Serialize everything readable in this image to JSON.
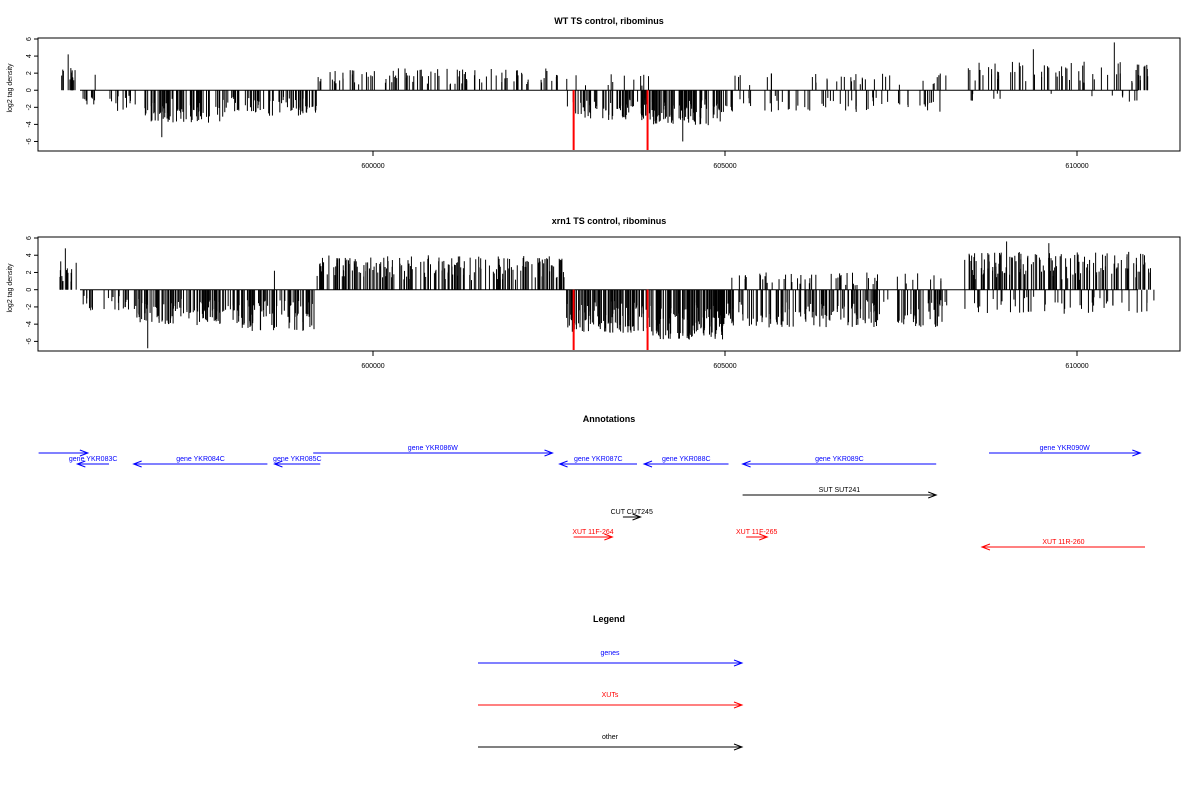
{
  "chart_data": [
    {
      "type": "bar",
      "title": "WT TS control, ribominus",
      "ylabel": "log2 tag density",
      "ylim": [
        -7,
        6
      ],
      "yticks": [
        -6,
        -4,
        -2,
        0,
        2,
        4,
        6
      ],
      "xlim": [
        595250,
        611500
      ],
      "xticks": [
        600000,
        605000,
        610000
      ],
      "segments": [
        {
          "start": 595550,
          "end": 595800,
          "sign": 1,
          "amp": 2.6,
          "density": 12
        },
        {
          "start": 595850,
          "end": 596050,
          "sign": -1,
          "amp": 1.8,
          "density": 10
        },
        {
          "start": 596000,
          "end": 596100,
          "sign": 1,
          "amp": 2.0,
          "density": 1
        },
        {
          "start": 596100,
          "end": 596750,
          "sign": -1,
          "amp": 2.5,
          "density": 14
        },
        {
          "start": 596750,
          "end": 597900,
          "sign": -1,
          "amp": 3.8,
          "density": 75
        },
        {
          "start": 597900,
          "end": 598500,
          "sign": -1,
          "amp": 2.6,
          "density": 25
        },
        {
          "start": 598500,
          "end": 599200,
          "sign": -1,
          "amp": 3.0,
          "density": 40
        },
        {
          "start": 599200,
          "end": 602750,
          "sign": 1,
          "amp": 2.6,
          "density": 95
        },
        {
          "start": 602750,
          "end": 603950,
          "sign": -1,
          "amp": 3.5,
          "density": 70
        },
        {
          "start": 602750,
          "end": 603950,
          "sign": 1,
          "amp": 2.0,
          "density": 12
        },
        {
          "start": 603950,
          "end": 605000,
          "sign": -1,
          "amp": 4.2,
          "density": 95
        },
        {
          "start": 605000,
          "end": 608150,
          "sign": 1,
          "amp": 2.0,
          "density": 35
        },
        {
          "start": 605000,
          "end": 608150,
          "sign": -1,
          "amp": 2.6,
          "density": 60
        },
        {
          "start": 608400,
          "end": 611100,
          "sign": 1,
          "amp": 3.4,
          "density": 65
        },
        {
          "start": 608400,
          "end": 611100,
          "sign": -1,
          "amp": 1.4,
          "density": 16
        }
      ],
      "peaks": [
        {
          "x": 595670,
          "y": 4.2
        },
        {
          "x": 609380,
          "y": 4.8
        },
        {
          "x": 610530,
          "y": 5.6
        },
        {
          "x": 597000,
          "y": -5.5
        },
        {
          "x": 604400,
          "y": -6.0
        }
      ],
      "markers": [
        {
          "x": 602850,
          "y": -7.0,
          "color": "#ff0000"
        },
        {
          "x": 603900,
          "y": -7.0,
          "color": "#ff0000"
        }
      ]
    },
    {
      "type": "bar",
      "title": "xrn1 TS control, ribominus",
      "ylabel": "log2 tag density",
      "ylim": [
        -7,
        6
      ],
      "yticks": [
        -6,
        -4,
        -2,
        0,
        2,
        4,
        6
      ],
      "xlim": [
        595250,
        611500
      ],
      "xticks": [
        600000,
        605000,
        610000
      ],
      "segments": [
        {
          "start": 595550,
          "end": 595800,
          "sign": 1,
          "amp": 3.4,
          "density": 14
        },
        {
          "start": 595800,
          "end": 596500,
          "sign": -1,
          "amp": 2.4,
          "density": 20
        },
        {
          "start": 596500,
          "end": 598100,
          "sign": -1,
          "amp": 4.2,
          "density": 110
        },
        {
          "start": 598100,
          "end": 599200,
          "sign": -1,
          "amp": 4.8,
          "density": 70
        },
        {
          "start": 599200,
          "end": 602750,
          "sign": 1,
          "amp": 4.0,
          "density": 190
        },
        {
          "start": 602750,
          "end": 603950,
          "sign": -1,
          "amp": 5.0,
          "density": 110
        },
        {
          "start": 603950,
          "end": 605000,
          "sign": -1,
          "amp": 5.8,
          "density": 120
        },
        {
          "start": 605000,
          "end": 608150,
          "sign": -1,
          "amp": 4.4,
          "density": 170
        },
        {
          "start": 605000,
          "end": 608150,
          "sign": 1,
          "amp": 2.0,
          "density": 55
        },
        {
          "start": 608400,
          "end": 611100,
          "sign": 1,
          "amp": 4.4,
          "density": 140
        },
        {
          "start": 608400,
          "end": 611100,
          "sign": -1,
          "amp": 2.8,
          "density": 50
        }
      ],
      "peaks": [
        {
          "x": 595630,
          "y": 4.8
        },
        {
          "x": 598600,
          "y": 2.2
        },
        {
          "x": 609000,
          "y": 5.6
        },
        {
          "x": 609600,
          "y": 5.4
        },
        {
          "x": 596800,
          "y": -6.8
        },
        {
          "x": 603900,
          "y": -7.0
        }
      ],
      "markers": [
        {
          "x": 602850,
          "y": -7.0,
          "color": "#ff0000"
        },
        {
          "x": 603900,
          "y": -7.0,
          "color": "#ff0000"
        }
      ]
    }
  ],
  "annotations": {
    "title": "Annotations",
    "xlim": [
      595250,
      611500
    ],
    "rows": [
      {
        "row": 0,
        "start": 595250,
        "end": 595950,
        "dir": "+",
        "color": "#0000ff",
        "label": ""
      },
      {
        "row": 0,
        "start": 599150,
        "end": 602550,
        "dir": "+",
        "color": "#0000ff",
        "label": "gene YKR086W"
      },
      {
        "row": 0,
        "start": 608750,
        "end": 610900,
        "dir": "+",
        "color": "#0000ff",
        "label": "gene YKR090W"
      },
      {
        "row": 1,
        "start": 595800,
        "end": 596250,
        "dir": "-",
        "color": "#0000ff",
        "label": "gene YKR083C"
      },
      {
        "row": 1,
        "start": 596600,
        "end": 598500,
        "dir": "-",
        "color": "#0000ff",
        "label": "gene YKR084C"
      },
      {
        "row": 1,
        "start": 598600,
        "end": 599250,
        "dir": "-",
        "color": "#0000ff",
        "label": "gene YKR085C"
      },
      {
        "row": 1,
        "start": 602650,
        "end": 603750,
        "dir": "-",
        "color": "#0000ff",
        "label": "gene YKR087C"
      },
      {
        "row": 1,
        "start": 603850,
        "end": 605050,
        "dir": "-",
        "color": "#0000ff",
        "label": "gene YKR088C"
      },
      {
        "row": 1,
        "start": 605250,
        "end": 608000,
        "dir": "-",
        "color": "#0000ff",
        "label": "gene YKR089C"
      },
      {
        "row": 2,
        "start": 605250,
        "end": 608000,
        "dir": "+",
        "color": "#000000",
        "label": "SUT SUT241"
      },
      {
        "row": 3,
        "start": 603550,
        "end": 603800,
        "dir": "+",
        "color": "#000000",
        "label": "CUT CUT245"
      },
      {
        "row": 4,
        "start": 602850,
        "end": 603400,
        "dir": "+",
        "color": "#ff0000",
        "label": "XUT 11F-264"
      },
      {
        "row": 4,
        "start": 605300,
        "end": 605600,
        "dir": "+",
        "color": "#ff0000",
        "label": "XUT 11F-265"
      },
      {
        "row": 5,
        "start": 608650,
        "end": 611050,
        "dir": "-",
        "color": "#ff0000",
        "label": "XUT 11R-260"
      }
    ]
  },
  "legend": {
    "title": "Legend",
    "items": [
      {
        "label": "genes",
        "color": "#0000ff"
      },
      {
        "label": "XUTs",
        "color": "#ff0000"
      },
      {
        "label": "other",
        "color": "#000000"
      }
    ]
  }
}
